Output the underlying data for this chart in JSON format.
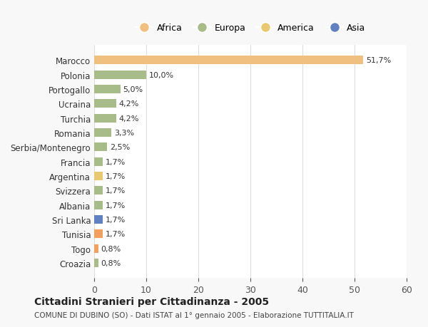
{
  "countries": [
    "Marocco",
    "Polonia",
    "Portogallo",
    "Ucraina",
    "Turchia",
    "Romania",
    "Serbia/Montenegro",
    "Francia",
    "Argentina",
    "Svizzera",
    "Albania",
    "Sri Lanka",
    "Tunisia",
    "Togo",
    "Croazia"
  ],
  "values": [
    51.7,
    10.0,
    5.0,
    4.2,
    4.2,
    3.3,
    2.5,
    1.7,
    1.7,
    1.7,
    1.7,
    1.7,
    1.7,
    0.8,
    0.8
  ],
  "labels": [
    "51,7%",
    "10,0%",
    "5,0%",
    "4,2%",
    "4,2%",
    "3,3%",
    "2,5%",
    "1,7%",
    "1,7%",
    "1,7%",
    "1,7%",
    "1,7%",
    "1,7%",
    "0,8%",
    "0,8%"
  ],
  "colors": [
    "#F0C080",
    "#A8BC8A",
    "#A8BC8A",
    "#A8BC8A",
    "#A8BC8A",
    "#A8BC8A",
    "#A8BC8A",
    "#A8BC8A",
    "#E8C870",
    "#A8BC8A",
    "#A8BC8A",
    "#6080C0",
    "#F0A060",
    "#F0A060",
    "#A8BC8A"
  ],
  "legend_labels": [
    "Africa",
    "Europa",
    "America",
    "Asia"
  ],
  "legend_colors": [
    "#F0C080",
    "#A8BC8A",
    "#E8C870",
    "#6080C0"
  ],
  "title": "Cittadini Stranieri per Cittadinanza - 2005",
  "subtitle": "COMUNE DI DUBINO (SO) - Dati ISTAT al 1° gennaio 2005 - Elaborazione TUTTITALIA.IT",
  "xlim": [
    0,
    60
  ],
  "xticks": [
    0,
    10,
    20,
    30,
    40,
    50,
    60
  ],
  "bg_color": "#f8f8f8",
  "plot_bg_color": "#ffffff"
}
